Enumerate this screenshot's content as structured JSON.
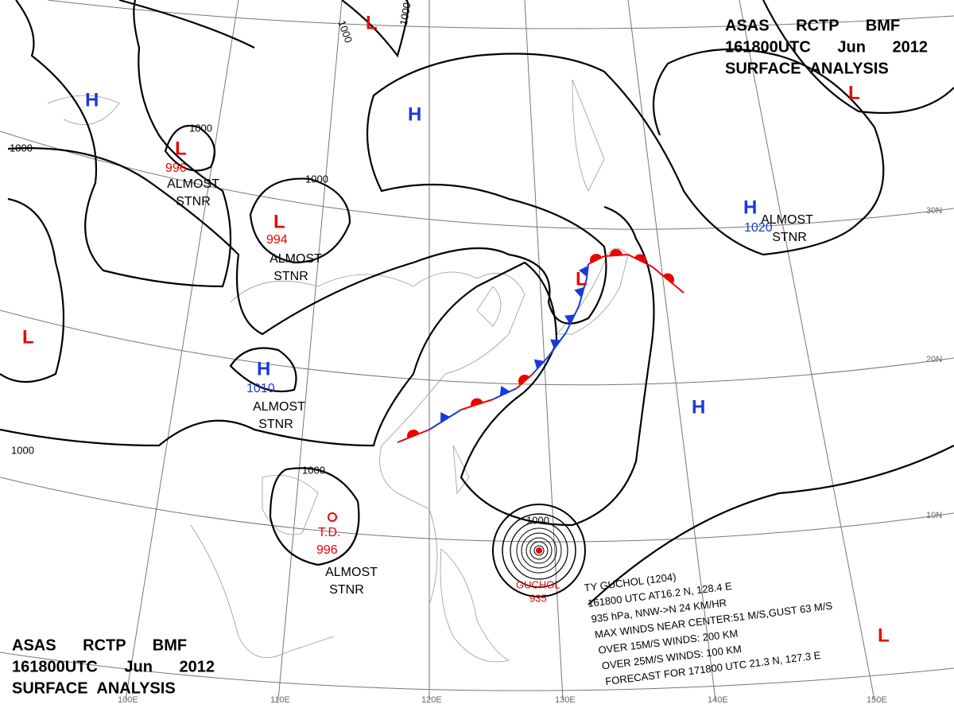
{
  "header_top": [
    "ASAS RCTP BMF",
    "161800UTC Jun 2012",
    "SURFACE ANALYSIS"
  ],
  "header_bottom": [
    "ASAS RCTP BMF",
    "161800UTC Jun 2012",
    "SURFACE ANALYSIS"
  ],
  "centers": [
    {
      "type": "H"
    },
    {
      "type": "L",
      "value": "996"
    },
    {
      "type": "L",
      "value": "994"
    },
    {
      "type": "H"
    },
    {
      "type": "L"
    },
    {
      "type": "H",
      "value": "1020"
    },
    {
      "type": "L"
    },
    {
      "type": "L"
    },
    {
      "type": "H",
      "value": "1010"
    },
    {
      "type": "H"
    },
    {
      "type": "L"
    },
    {
      "type": "L"
    }
  ],
  "notes": [
    [
      "ALMOST",
      "STNR"
    ],
    [
      "ALMOST",
      "STNR"
    ],
    [
      "ALMOST",
      "STNR"
    ],
    [
      "ALMOST",
      "STNR"
    ],
    [
      "ALMOST",
      "STNR"
    ]
  ],
  "td": {
    "label": "T.D.",
    "pressure": "996"
  },
  "isobar_labels": [
    "1000",
    "1000",
    "1000",
    "1000",
    "1000",
    "1000",
    "1000",
    "1000"
  ],
  "typhoon": {
    "name": "GUCHOL",
    "pressure": "935",
    "info": [
      "TY GUCHOL (1204)",
      "161800 UTC AT16.2 N, 128.4 E",
      "935 hPa, NNW->N 24 KM/HR",
      "MAX WINDS NEAR CENTER:51 M/S,GUST 63 M/S",
      "OVER 15M/S WINDS: 200 KM",
      "OVER 25M/S WINDS: 100 KM",
      "FORECAST FOR 171800 UTC 21.3 N, 127.3 E"
    ]
  },
  "lat_labels": [
    "30N",
    "20N",
    "10N"
  ],
  "lon_labels": [
    "100E",
    "110E",
    "120E",
    "130E",
    "140E",
    "150E"
  ]
}
